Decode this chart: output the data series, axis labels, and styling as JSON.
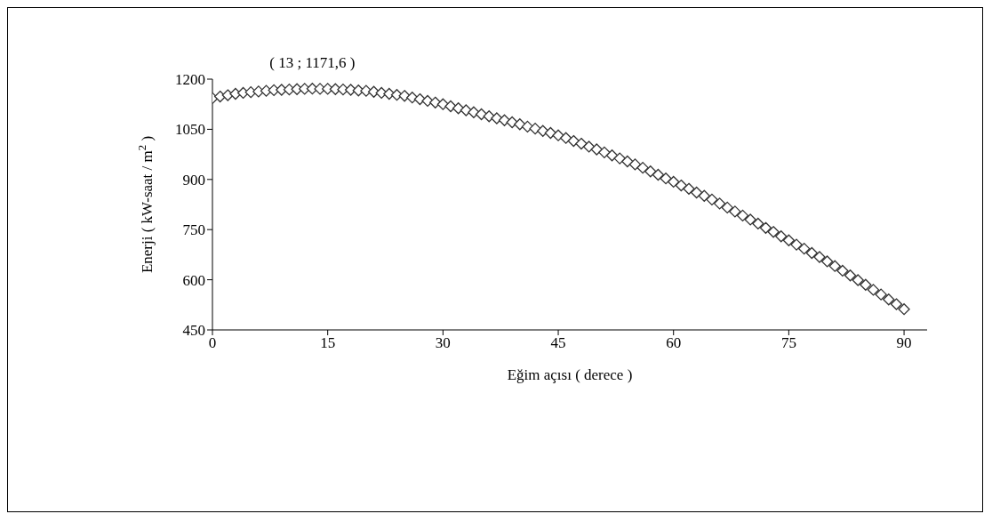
{
  "chart_data": {
    "type": "scatter",
    "xlabel": "Eğim açısı ( derece )",
    "ylabel": "Enerji ( kW-saat / m$^{2}$ )",
    "x": [
      0,
      1,
      2,
      3,
      4,
      5,
      6,
      7,
      8,
      9,
      10,
      11,
      12,
      13,
      14,
      15,
      16,
      17,
      18,
      19,
      20,
      21,
      22,
      23,
      24,
      25,
      26,
      27,
      28,
      29,
      30,
      31,
      32,
      33,
      34,
      35,
      36,
      37,
      38,
      39,
      40,
      41,
      42,
      43,
      44,
      45,
      46,
      47,
      48,
      49,
      50,
      51,
      52,
      53,
      54,
      55,
      56,
      57,
      58,
      59,
      60,
      61,
      62,
      63,
      64,
      65,
      66,
      67,
      68,
      69,
      70,
      71,
      72,
      73,
      74,
      75,
      76,
      77,
      78,
      79,
      80,
      81,
      82,
      83,
      84,
      85,
      86,
      87,
      88,
      89,
      90
    ],
    "series": [
      {
        "color": "#333333",
        "values": [
          1143,
          1148,
          1152,
          1156,
          1159,
          1161,
          1163,
          1165,
          1167,
          1168,
          1169,
          1170,
          1171,
          1171.6,
          1171,
          1171,
          1170,
          1169,
          1168,
          1166,
          1165,
          1162,
          1159,
          1156,
          1153,
          1150,
          1145,
          1140,
          1135,
          1130,
          1125,
          1119,
          1113,
          1107,
          1101,
          1095,
          1089,
          1083,
          1077,
          1071,
          1065,
          1058,
          1052,
          1045,
          1039,
          1032,
          1024,
          1015,
          1007,
          998,
          990,
          981,
          972,
          963,
          954,
          945,
          935,
          924,
          914,
          903,
          893,
          882,
          872,
          861,
          851,
          840,
          828,
          816,
          804,
          792,
          780,
          768,
          755,
          743,
          730,
          718,
          705,
          693,
          680,
          668,
          655,
          641,
          627,
          613,
          599,
          585,
          570,
          556,
          541,
          527,
          512
        ]
      }
    ],
    "xlim": [
      0,
      93
    ],
    "xticks": [
      0,
      15,
      30,
      45,
      60,
      75,
      90
    ],
    "ylim": [
      450,
      1200
    ],
    "yticks": [
      450,
      600,
      750,
      900,
      1050,
      1200
    ],
    "grid": false,
    "legend": false,
    "marker": "diamond",
    "annotations": [
      {
        "text": "( 13 ; 1171,6 )",
        "x": 13,
        "y": 1171.6
      }
    ]
  }
}
